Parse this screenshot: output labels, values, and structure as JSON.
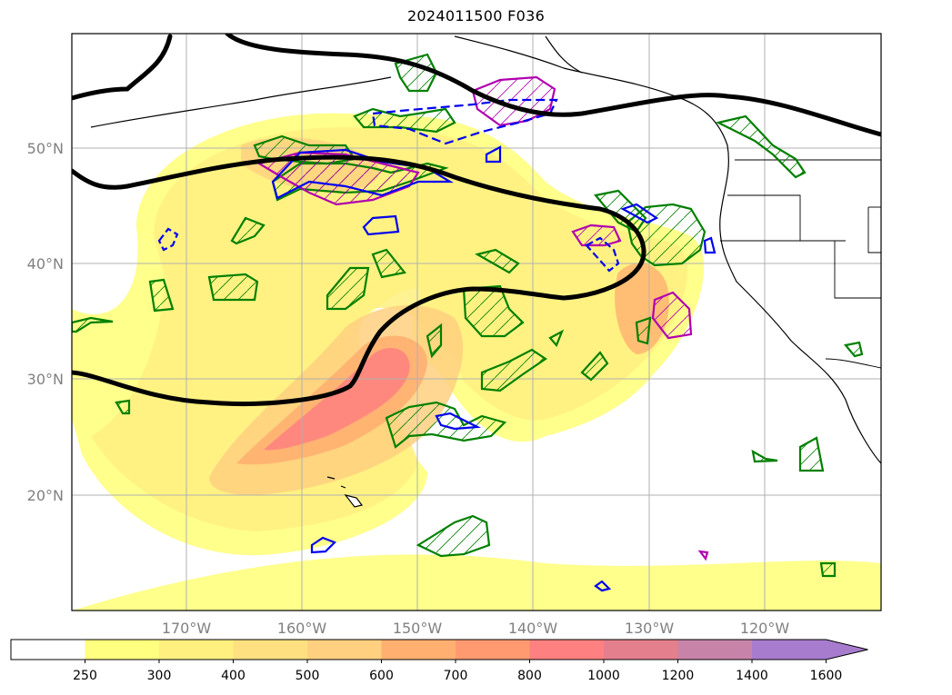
{
  "title": "2024011500 F036",
  "map": {
    "projection": "PlateCarree",
    "lon_range": [
      -180,
      -110
    ],
    "lat_range": [
      10,
      60
    ],
    "gridlines": true,
    "lat_labels": [
      "50°N",
      "40°N",
      "30°N",
      "20°N"
    ],
    "lon_labels": [
      "170°W",
      "160°W",
      "150°W",
      "140°W",
      "130°W",
      "120°W"
    ]
  },
  "colorbar": {
    "levels": [
      "250",
      "300",
      "400",
      "500",
      "600",
      "700",
      "800",
      "1000",
      "1200",
      "1400",
      "1600"
    ],
    "colors": [
      "#ffffff",
      "#ffff80",
      "#fff080",
      "#ffe080",
      "#ffd080",
      "#ffb070",
      "#ff9a70",
      "#ff8080",
      "#e47f8d",
      "#c884a8",
      "#a77ccf"
    ],
    "extend": "max"
  }
}
